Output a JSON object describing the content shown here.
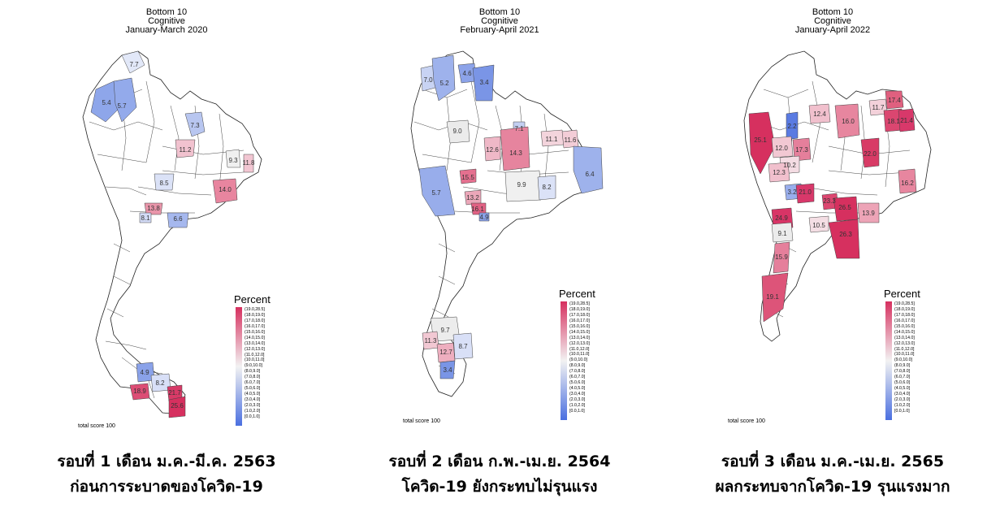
{
  "panels": [
    {
      "title": [
        "Bottom 10",
        "Cognitive",
        "January-March 2020"
      ],
      "caption": [
        "รอบที่ 1 เดือน ม.ค.-มี.ค. 2563",
        "ก่อนการระบาดของโควิด-19"
      ],
      "footnote": "total score 100",
      "values": [
        "7.7",
        "5.4",
        "5.7",
        "7.3",
        "11.2",
        "9.3",
        "11.8",
        "8.5",
        "14.0",
        "13.8",
        "8.1",
        "6.6",
        "4.9",
        "8.2",
        "18.9",
        "21.7",
        "25.6"
      ]
    },
    {
      "title": [
        "Bottom 10",
        "Cognitive",
        "February-April 2021"
      ],
      "caption": [
        "รอบที่ 2 เดือน ก.พ.-เม.ย. 2564",
        "โควิด-19 ยังกระทบไม่รุนแรง"
      ],
      "footnote": "total score 100",
      "values": [
        "7.0",
        "5.2",
        "4.6",
        "3.4",
        "9.0",
        "7.1",
        "12.6",
        "14.3",
        "11.1",
        "11.6",
        "6.4",
        "15.5",
        "9.9",
        "8.2",
        "5.7",
        "13.2",
        "16.1",
        "4.9",
        "9.7",
        "11.3",
        "12.7",
        "8.7",
        "3.4"
      ]
    },
    {
      "title": [
        "Bottom 10",
        "Cognitive",
        "January-April 2022"
      ],
      "caption": [
        "รอบที่ 3 เดือน ม.ค.-เม.ย. 2565",
        "ผลกระทบจากโควิด-19 รุนแรงมาก"
      ],
      "footnote": "total score 100",
      "values": [
        "17.4",
        "11.7",
        "18.1",
        "21.4",
        "12.4",
        "16.0",
        "2.2",
        "25.1",
        "12.0",
        "17.3",
        "10.2",
        "22.0",
        "12.3",
        "16.2",
        "3.2",
        "21.0",
        "23.3",
        "26.5",
        "13.9",
        "24.9",
        "9.1",
        "10.5",
        "26.3",
        "15.9",
        "19.1"
      ]
    }
  ],
  "legend": {
    "title": "Percent",
    "bins": [
      "(19.0,28.5]",
      "(18.0,19.0]",
      "(17.0,18.0]",
      "(16.0,17.0]",
      "(15.0,16.0]",
      "(14.0,15.0]",
      "(13.0,14.0]",
      "(12.0,13.0]",
      "(11.0,12.0]",
      "(10.0,11.0]",
      "(9.0,10.0]",
      "(8.0,9.0]",
      "(7.0,8.0]",
      "(6.0,7.0]",
      "(5.0,6.0]",
      "(4.0,5.0]",
      "(3.0,4.0]",
      "(2.0,3.0]",
      "(1.0,2.0]",
      "[0.0,1.0]"
    ],
    "color_high": "#d6305f",
    "color_mid": "#f2f2f2",
    "color_low": "#4a6fe0"
  }
}
